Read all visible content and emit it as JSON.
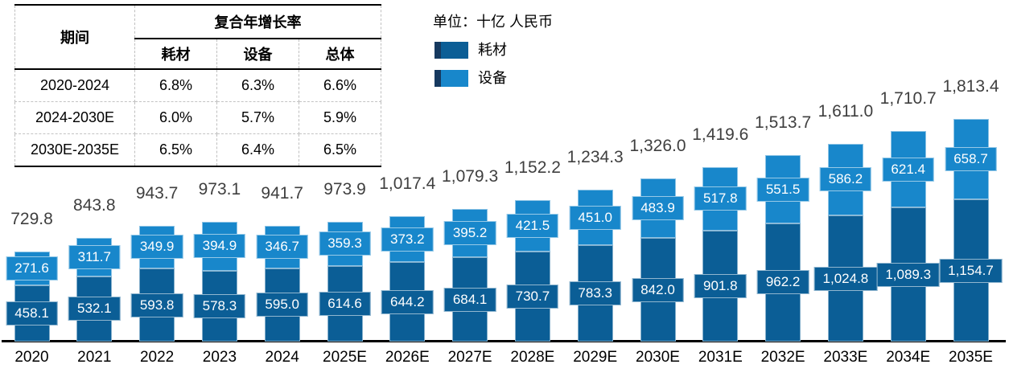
{
  "unit_label": "单位：十亿 人民币",
  "table": {
    "period_header": "期间",
    "cagr_header": "复合年增长率",
    "sub_headers": [
      "耗材",
      "设备",
      "总体"
    ],
    "rows": [
      [
        "2020-2024",
        "6.8%",
        "6.3%",
        "6.6%"
      ],
      [
        "2024-2030E",
        "6.0%",
        "5.7%",
        "5.9%"
      ],
      [
        "2030E-2035E",
        "6.5%",
        "6.4%",
        "6.5%"
      ]
    ]
  },
  "legend": {
    "items": [
      {
        "label": "耗材",
        "color": "#0B5E96"
      },
      {
        "label": "设备",
        "color": "#1887CB"
      }
    ]
  },
  "colors": {
    "consumables": "#0B5E96",
    "equipment": "#1887CB",
    "axis": "#000000",
    "total_label": "#3f3f3f",
    "swatch_edge": "#16395f"
  },
  "chart_data": {
    "type": "bar",
    "stacked": true,
    "title": "",
    "unit": "十亿 人民币",
    "legend_position": "top-left",
    "grid": false,
    "value_labels": true,
    "ylim": [
      0,
      1900
    ],
    "categories": [
      "2020",
      "2021",
      "2022",
      "2023",
      "2024",
      "2025E",
      "2026E",
      "2027E",
      "2028E",
      "2029E",
      "2030E",
      "2031E",
      "2032E",
      "2033E",
      "2034E",
      "2035E"
    ],
    "series": [
      {
        "name": "耗材",
        "color": "#0B5E96",
        "values": [
          458.1,
          532.1,
          593.8,
          578.3,
          595.0,
          614.6,
          644.2,
          684.1,
          730.7,
          783.3,
          842.0,
          901.8,
          962.2,
          1024.8,
          1089.3,
          1154.7
        ]
      },
      {
        "name": "设备",
        "color": "#1887CB",
        "values": [
          271.6,
          311.7,
          349.9,
          394.9,
          346.7,
          359.3,
          373.2,
          395.2,
          421.5,
          451.0,
          483.9,
          517.8,
          551.5,
          586.2,
          621.4,
          658.7
        ]
      }
    ],
    "totals": [
      729.8,
      843.8,
      943.7,
      973.1,
      941.7,
      973.9,
      1017.4,
      1079.3,
      1152.2,
      1234.3,
      1326.0,
      1419.6,
      1513.7,
      1611.0,
      1710.7,
      1813.4
    ]
  }
}
